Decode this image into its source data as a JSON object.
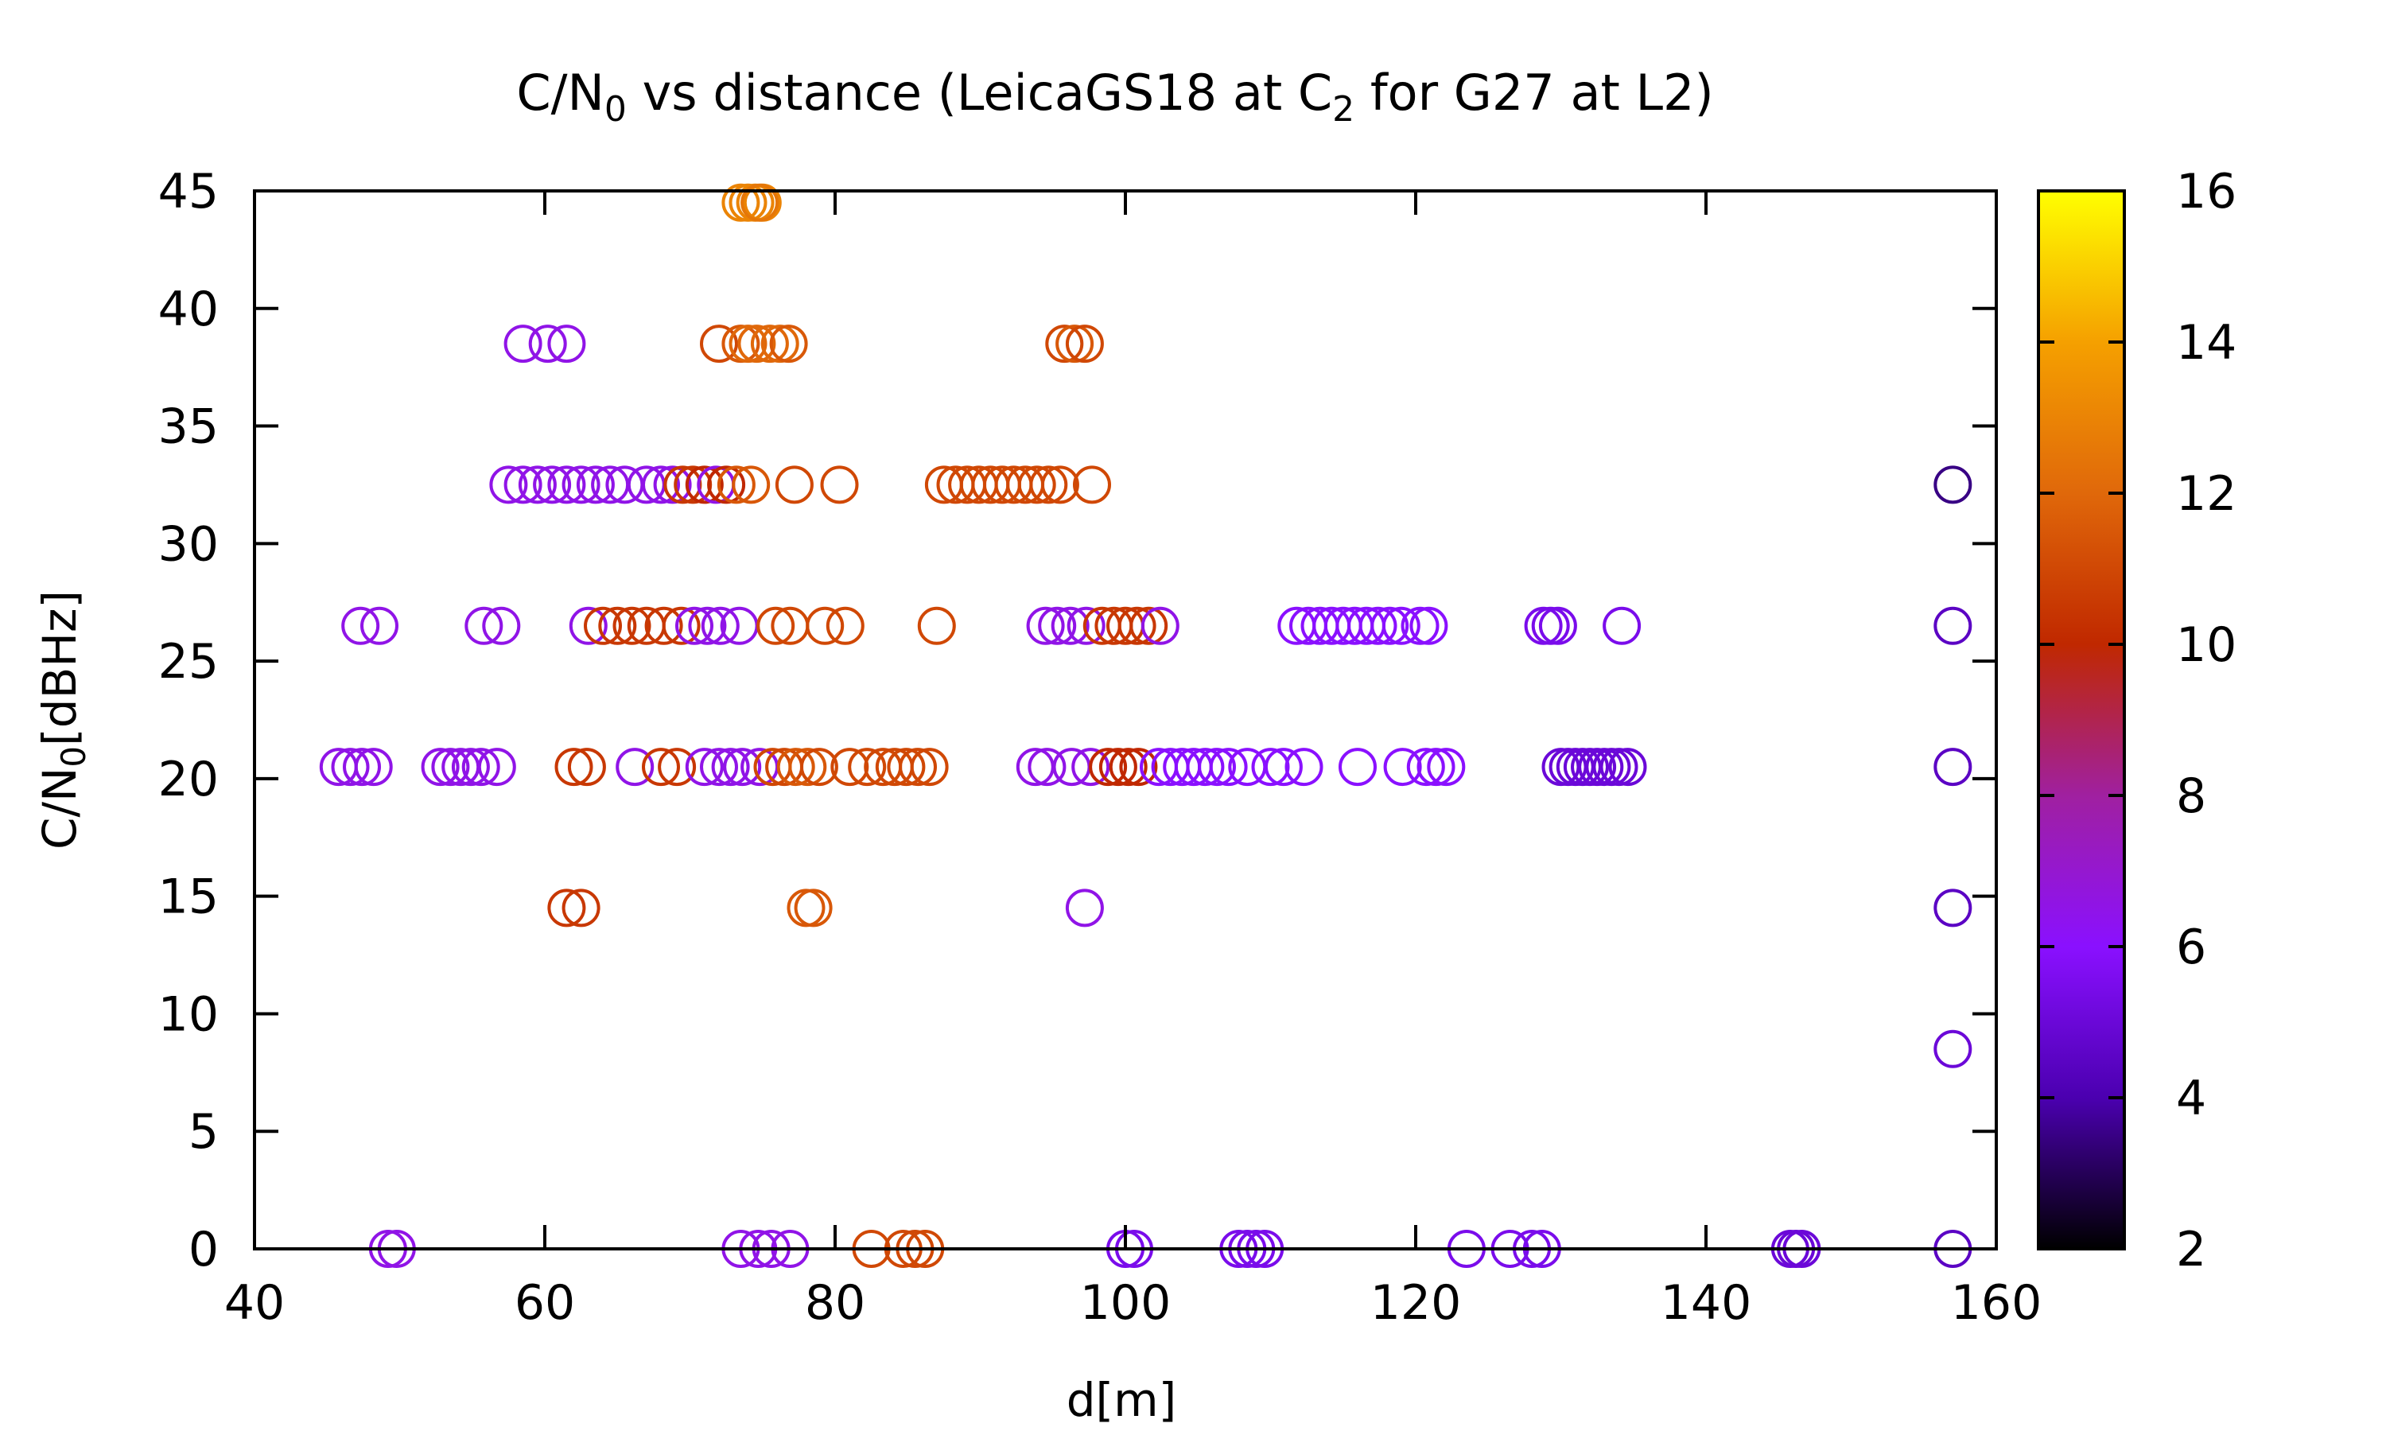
{
  "chart_data": {
    "type": "scatter",
    "title": {
      "text": "C/N",
      "sub1": "0",
      "mid": " vs distance (LeicaGS18 at C",
      "sub2": "2",
      "end": " for G27 at L2)"
    },
    "xlabel": "d[m]",
    "ylabel": {
      "text": "C/N",
      "sub": "0",
      "end": "[dBHz]"
    },
    "xlim": [
      40,
      160
    ],
    "ylim": [
      0,
      45
    ],
    "xticks": [
      40,
      60,
      80,
      100,
      120,
      140,
      160
    ],
    "yticks": [
      0,
      5,
      10,
      15,
      20,
      25,
      30,
      35,
      40,
      45
    ],
    "colorbar": {
      "range": [
        2,
        16
      ],
      "ticks": [
        2,
        4,
        6,
        8,
        10,
        12,
        14,
        16
      ],
      "palette": [
        "#000000",
        "#4b00b0",
        "#8a10ff",
        "#a020a0",
        "#c02800",
        "#e0680a",
        "#f5a000",
        "#ffff00"
      ]
    },
    "grid": false,
    "marker": "open-circle",
    "points": [
      [
        74,
        44.5,
        13
      ],
      [
        74.5,
        44.5,
        13
      ],
      [
        75,
        44.5,
        13
      ],
      [
        73.5,
        44.5,
        13
      ],
      [
        74.8,
        44.5,
        12.5
      ],
      [
        58.5,
        38.5,
        6.5
      ],
      [
        60.2,
        38.5,
        6.5
      ],
      [
        61.5,
        38.5,
        6.5
      ],
      [
        72,
        38.5,
        11
      ],
      [
        73.5,
        38.5,
        11.5
      ],
      [
        74,
        38.5,
        12
      ],
      [
        74.6,
        38.5,
        12
      ],
      [
        75.5,
        38.5,
        12
      ],
      [
        76.2,
        38.5,
        12
      ],
      [
        76.8,
        38.5,
        11.5
      ],
      [
        95.8,
        38.5,
        11
      ],
      [
        96.5,
        38.5,
        11.5
      ],
      [
        97.2,
        38.5,
        11
      ],
      [
        57.5,
        32.5,
        6.5
      ],
      [
        58.5,
        32.5,
        6.5
      ],
      [
        59.5,
        32.5,
        6.5
      ],
      [
        60.5,
        32.5,
        6.5
      ],
      [
        61.5,
        32.5,
        6.5
      ],
      [
        62.5,
        32.5,
        6.5
      ],
      [
        63.5,
        32.5,
        6.5
      ],
      [
        64.5,
        32.5,
        6.5
      ],
      [
        65.5,
        32.5,
        6.5
      ],
      [
        67,
        32.5,
        6.5
      ],
      [
        68,
        32.5,
        6.5
      ],
      [
        68.8,
        32.5,
        6.5
      ],
      [
        69.5,
        32.5,
        10.5
      ],
      [
        70.2,
        32.5,
        10.5
      ],
      [
        71,
        32.5,
        10
      ],
      [
        71.8,
        32.5,
        6.5
      ],
      [
        72.5,
        32.5,
        10
      ],
      [
        73.2,
        32.5,
        11.5
      ],
      [
        74.2,
        32.5,
        11.5
      ],
      [
        77.2,
        32.5,
        11
      ],
      [
        80.3,
        32.5,
        11
      ],
      [
        87.5,
        32.5,
        11
      ],
      [
        88.3,
        32.5,
        11
      ],
      [
        89.1,
        32.5,
        11
      ],
      [
        89.9,
        32.5,
        11
      ],
      [
        90.7,
        32.5,
        11
      ],
      [
        91.5,
        32.5,
        11
      ],
      [
        92.3,
        32.5,
        11
      ],
      [
        93.1,
        32.5,
        11
      ],
      [
        93.9,
        32.5,
        11
      ],
      [
        94.7,
        32.5,
        11
      ],
      [
        95.5,
        32.5,
        11
      ],
      [
        97.7,
        32.5,
        11
      ],
      [
        157,
        32.5,
        3.5
      ],
      [
        47.3,
        26.5,
        6.5
      ],
      [
        48.6,
        26.5,
        6.5
      ],
      [
        55.8,
        26.5,
        6.5
      ],
      [
        57,
        26.5,
        6.5
      ],
      [
        63,
        26.5,
        6.5
      ],
      [
        64,
        26.5,
        10.5
      ],
      [
        65,
        26.5,
        10.5
      ],
      [
        66,
        26.5,
        10.5
      ],
      [
        67,
        26.5,
        10.5
      ],
      [
        68.2,
        26.5,
        10.5
      ],
      [
        69.4,
        26.5,
        10.5
      ],
      [
        70.3,
        26.5,
        6.5
      ],
      [
        71.2,
        26.5,
        6.5
      ],
      [
        72.1,
        26.5,
        6.5
      ],
      [
        73.4,
        26.5,
        6.5
      ],
      [
        75.9,
        26.5,
        11
      ],
      [
        76.9,
        26.5,
        11
      ],
      [
        79.3,
        26.5,
        11
      ],
      [
        80.7,
        26.5,
        11
      ],
      [
        87,
        26.5,
        11
      ],
      [
        94.5,
        26.5,
        6.5
      ],
      [
        95.3,
        26.5,
        6.5
      ],
      [
        96.2,
        26.5,
        6.5
      ],
      [
        97.3,
        26.5,
        6.5
      ],
      [
        98.4,
        26.5,
        10.5
      ],
      [
        99.2,
        26.5,
        10.5
      ],
      [
        100,
        26.5,
        10.5
      ],
      [
        100.8,
        26.5,
        10.5
      ],
      [
        101.6,
        26.5,
        10.5
      ],
      [
        102.4,
        26.5,
        6.5
      ],
      [
        111.8,
        26.5,
        6
      ],
      [
        112.6,
        26.5,
        6
      ],
      [
        113.4,
        26.5,
        6
      ],
      [
        114.2,
        26.5,
        6
      ],
      [
        115,
        26.5,
        6
      ],
      [
        115.8,
        26.5,
        6
      ],
      [
        116.6,
        26.5,
        6
      ],
      [
        117.4,
        26.5,
        6
      ],
      [
        118.2,
        26.5,
        6
      ],
      [
        119,
        26.5,
        6
      ],
      [
        120.3,
        26.5,
        6
      ],
      [
        120.9,
        26.5,
        6
      ],
      [
        128.8,
        26.5,
        5.5
      ],
      [
        129.3,
        26.5,
        5.5
      ],
      [
        129.8,
        26.5,
        5.5
      ],
      [
        134.2,
        26.5,
        5.5
      ],
      [
        157,
        26.5,
        4.5
      ],
      [
        45.8,
        20.5,
        6.5
      ],
      [
        46.6,
        20.5,
        6.5
      ],
      [
        47.4,
        20.5,
        6.5
      ],
      [
        48.2,
        20.5,
        6.5
      ],
      [
        52.8,
        20.5,
        6.5
      ],
      [
        53.5,
        20.5,
        6.5
      ],
      [
        54.2,
        20.5,
        6.5
      ],
      [
        54.9,
        20.5,
        6.5
      ],
      [
        55.6,
        20.5,
        6.5
      ],
      [
        56.7,
        20.5,
        6.5
      ],
      [
        62,
        20.5,
        10.5
      ],
      [
        62.9,
        20.5,
        10.5
      ],
      [
        66.2,
        20.5,
        6.5
      ],
      [
        68,
        20.5,
        10.5
      ],
      [
        69.1,
        20.5,
        10.5
      ],
      [
        71,
        20.5,
        6.5
      ],
      [
        72,
        20.5,
        6.5
      ],
      [
        72.8,
        20.5,
        6.5
      ],
      [
        73.6,
        20.5,
        6.5
      ],
      [
        74.8,
        20.5,
        6.5
      ],
      [
        75.7,
        20.5,
        11
      ],
      [
        76.5,
        20.5,
        11
      ],
      [
        77.3,
        20.5,
        11.5
      ],
      [
        78.1,
        20.5,
        11.5
      ],
      [
        78.9,
        20.5,
        11
      ],
      [
        81,
        20.5,
        11
      ],
      [
        82.2,
        20.5,
        11
      ],
      [
        83.3,
        20.5,
        11
      ],
      [
        84.1,
        20.5,
        11
      ],
      [
        84.9,
        20.5,
        11
      ],
      [
        85.7,
        20.5,
        11
      ],
      [
        86.5,
        20.5,
        11
      ],
      [
        93.8,
        20.5,
        6.5
      ],
      [
        94.6,
        20.5,
        6.5
      ],
      [
        96.3,
        20.5,
        6.5
      ],
      [
        97.6,
        20.5,
        6.5
      ],
      [
        98.8,
        20.5,
        10
      ],
      [
        99.5,
        20.5,
        10
      ],
      [
        100.2,
        20.5,
        10
      ],
      [
        100.9,
        20.5,
        10
      ],
      [
        102.3,
        20.5,
        6
      ],
      [
        103.1,
        20.5,
        6
      ],
      [
        103.9,
        20.5,
        6
      ],
      [
        104.7,
        20.5,
        6
      ],
      [
        105.5,
        20.5,
        6
      ],
      [
        106.3,
        20.5,
        6
      ],
      [
        107.1,
        20.5,
        6
      ],
      [
        108.4,
        20.5,
        6
      ],
      [
        110,
        20.5,
        6
      ],
      [
        110.9,
        20.5,
        6
      ],
      [
        112.3,
        20.5,
        6
      ],
      [
        116,
        20.5,
        6
      ],
      [
        119.1,
        20.5,
        6
      ],
      [
        120.7,
        20.5,
        6
      ],
      [
        121.4,
        20.5,
        6
      ],
      [
        122.1,
        20.5,
        6
      ],
      [
        130,
        20.5,
        5
      ],
      [
        130.5,
        20.5,
        5
      ],
      [
        131,
        20.5,
        5
      ],
      [
        131.5,
        20.5,
        5
      ],
      [
        132,
        20.5,
        5
      ],
      [
        132.5,
        20.5,
        5
      ],
      [
        133,
        20.5,
        5
      ],
      [
        133.5,
        20.5,
        5
      ],
      [
        134,
        20.5,
        5
      ],
      [
        134.6,
        20.5,
        5
      ],
      [
        157,
        20.5,
        4.5
      ],
      [
        61.5,
        14.5,
        10.5
      ],
      [
        62.5,
        14.5,
        10.5
      ],
      [
        78,
        14.5,
        11.5
      ],
      [
        78.5,
        14.5,
        11.5
      ],
      [
        97.2,
        14.5,
        6.5
      ],
      [
        157,
        14.5,
        4.5
      ],
      [
        157,
        8.5,
        5
      ],
      [
        49.2,
        0,
        6.5
      ],
      [
        49.8,
        0,
        6.5
      ],
      [
        73.5,
        0,
        6.5
      ],
      [
        74.7,
        0,
        6.5
      ],
      [
        75.6,
        0,
        6.5
      ],
      [
        76.9,
        0,
        6.5
      ],
      [
        82.5,
        0,
        11
      ],
      [
        84.7,
        0,
        11
      ],
      [
        85.5,
        0,
        11
      ],
      [
        86.2,
        0,
        11
      ],
      [
        100,
        0,
        5.5
      ],
      [
        100.6,
        0,
        5.5
      ],
      [
        107.8,
        0,
        5.5
      ],
      [
        108.4,
        0,
        5.5
      ],
      [
        109,
        0,
        5.5
      ],
      [
        109.6,
        0,
        5.5
      ],
      [
        123.5,
        0,
        5.5
      ],
      [
        126.5,
        0,
        5.5
      ],
      [
        128,
        0,
        5.5
      ],
      [
        128.7,
        0,
        5.5
      ],
      [
        145.8,
        0,
        5
      ],
      [
        146.2,
        0,
        5
      ],
      [
        146.6,
        0,
        5
      ],
      [
        157,
        0,
        4.5
      ]
    ]
  }
}
